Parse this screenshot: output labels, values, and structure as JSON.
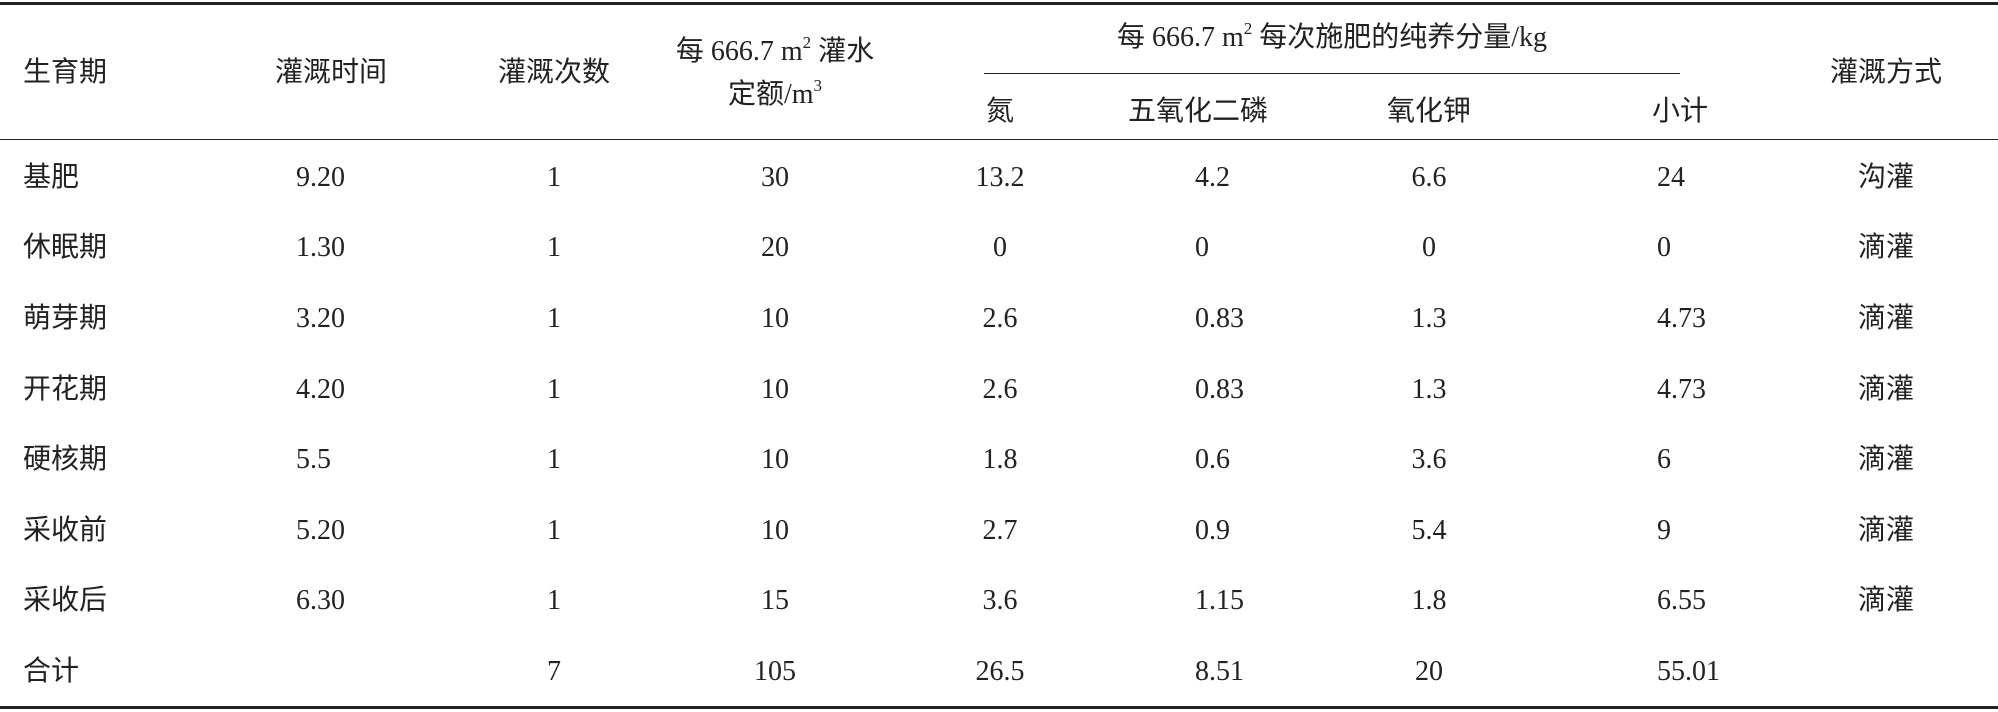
{
  "header": {
    "stage": "生育期",
    "time": "灌溉时间",
    "count": "灌溉次数",
    "water": {
      "line1": "每 666.7 m",
      "sup1": "2",
      "line1_end": " 灌水",
      "line2": "定额/m",
      "sup2": "3"
    },
    "fert": {
      "text": "每 666.7 m",
      "sup": "2",
      "text_end": " 每次施肥的纯养分量/kg",
      "subs": [
        "氮",
        "五氧化二磷",
        "氧化钾",
        "小计"
      ]
    },
    "method": "灌溉方式"
  },
  "table": {
    "rows": [
      [
        "基肥",
        "9.20",
        "1",
        "30",
        "13.2",
        "4.2",
        "6.6",
        "24",
        "沟灌"
      ],
      [
        "休眠期",
        "1.30",
        "1",
        "20",
        "0",
        "0",
        "0",
        "0",
        "滴灌"
      ],
      [
        "萌芽期",
        "3.20",
        "1",
        "10",
        "2.6",
        "0.83",
        "1.3",
        "4.73",
        "滴灌"
      ],
      [
        "开花期",
        "4.20",
        "1",
        "10",
        "2.6",
        "0.83",
        "1.3",
        "4.73",
        "滴灌"
      ],
      [
        "硬核期",
        "5.5",
        "1",
        "10",
        "1.8",
        "0.6",
        "3.6",
        "6",
        "滴灌"
      ],
      [
        "采收前",
        "5.20",
        "1",
        "10",
        "2.7",
        "0.9",
        "5.4",
        "9",
        "滴灌"
      ],
      [
        "采收后",
        "6.30",
        "1",
        "15",
        "3.6",
        "1.15",
        "1.8",
        "6.55",
        "滴灌"
      ],
      [
        "合计",
        null,
        "7",
        "105",
        "26.5",
        "8.51",
        "20",
        "55.01",
        null
      ]
    ]
  }
}
